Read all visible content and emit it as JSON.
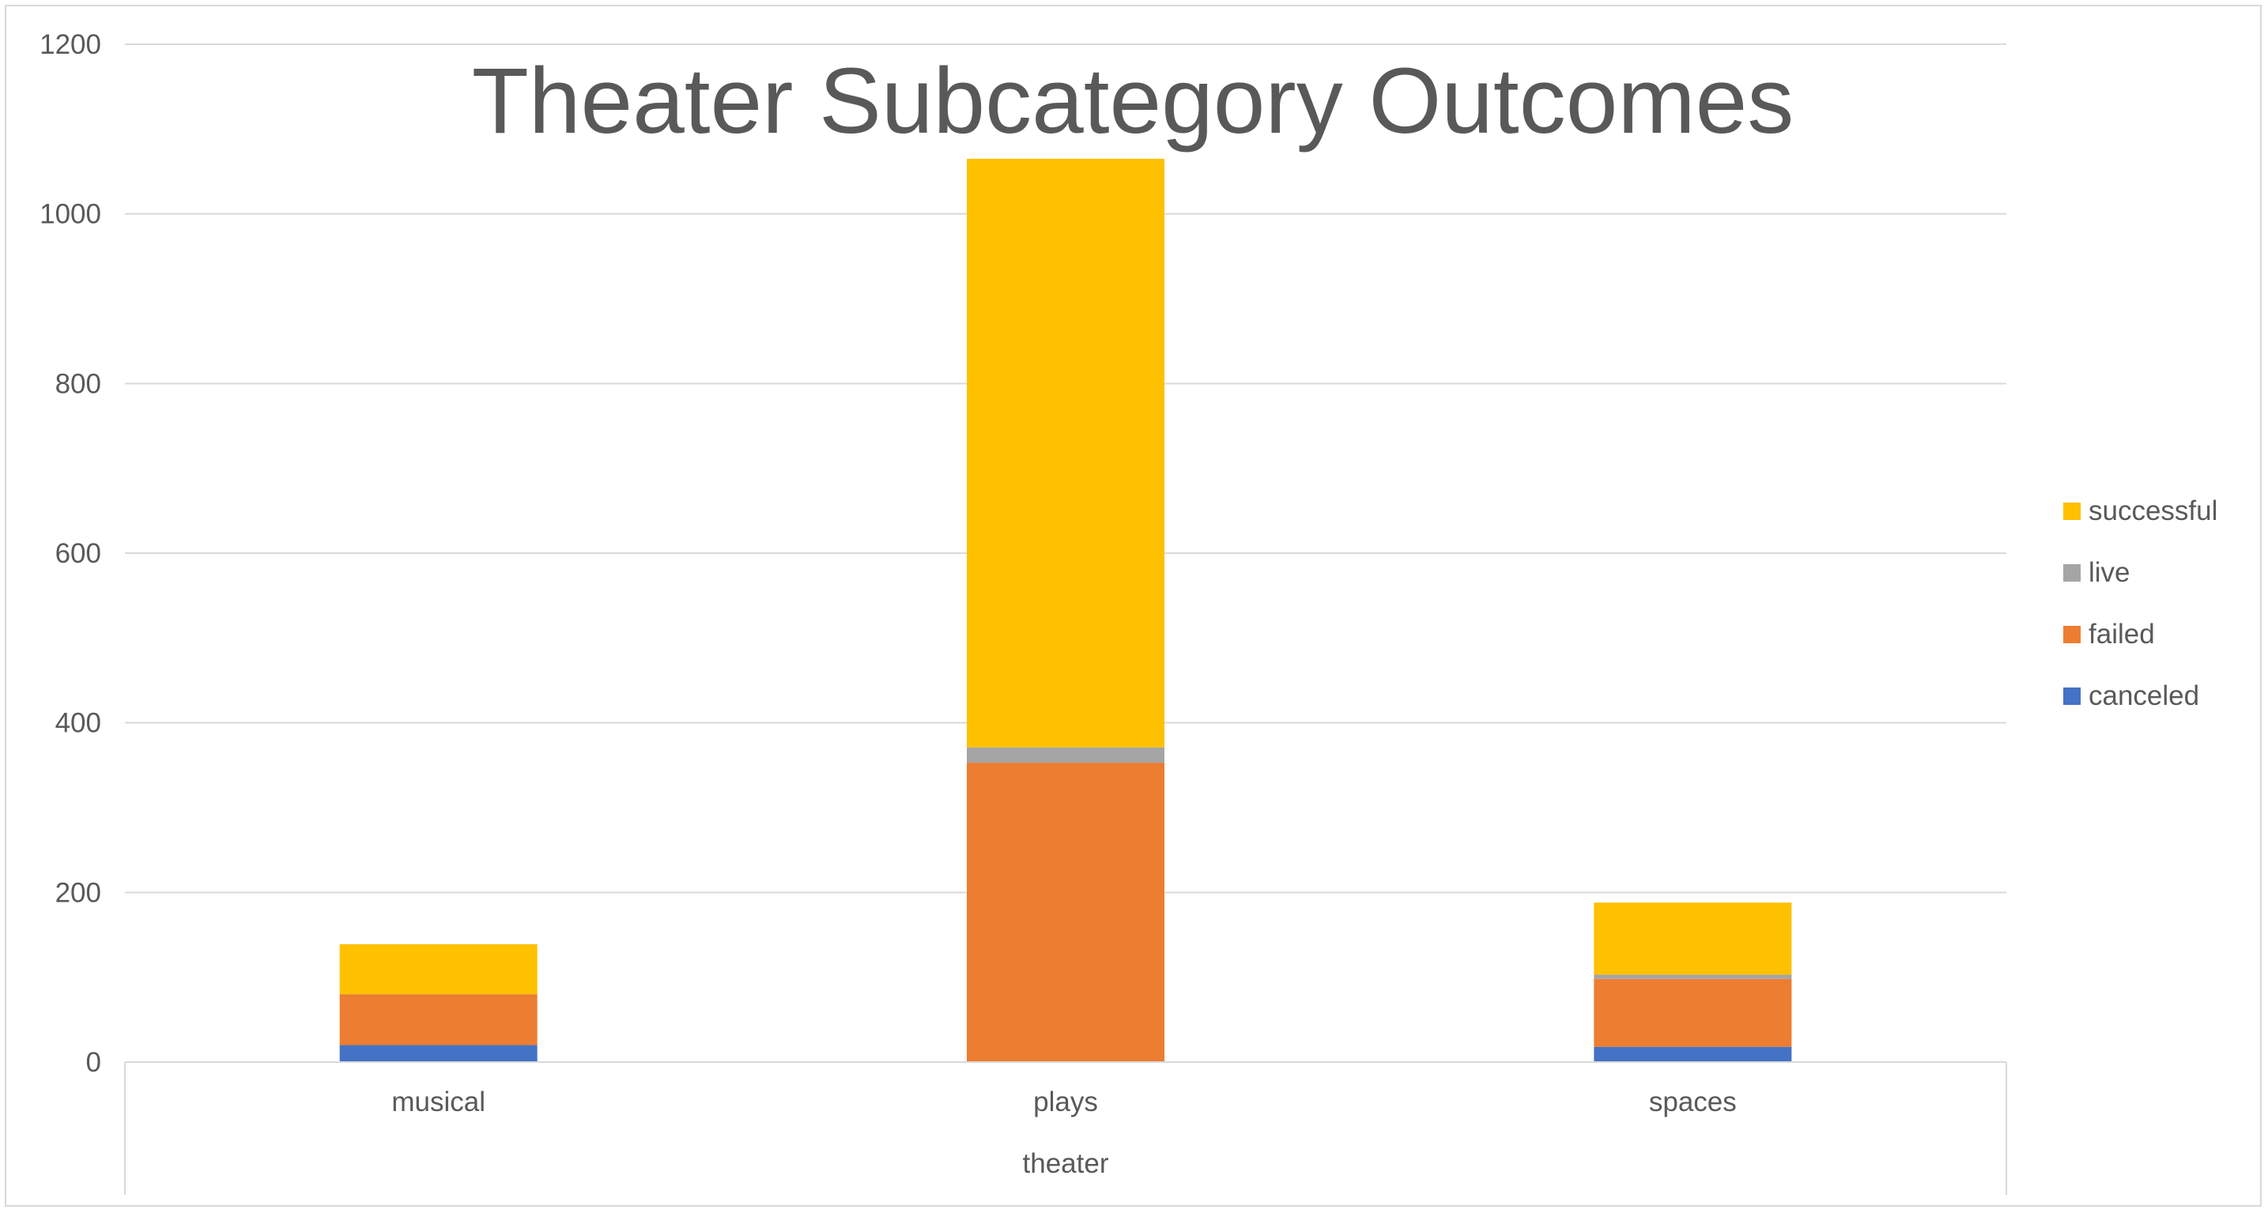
{
  "chart_data": {
    "type": "bar",
    "stacked": true,
    "title": "Theater Subcategory Outcomes",
    "xlabel": "",
    "ylabel": "",
    "group_label": "theater",
    "categories": [
      "musical",
      "plays",
      "spaces"
    ],
    "series": [
      {
        "name": "canceled",
        "color": "#4472C4",
        "values": [
          20,
          0,
          18
        ]
      },
      {
        "name": "failed",
        "color": "#ED7D31",
        "values": [
          60,
          353,
          80
        ]
      },
      {
        "name": "live",
        "color": "#A5A5A5",
        "values": [
          0,
          18,
          5
        ]
      },
      {
        "name": "successful",
        "color": "#FFC000",
        "values": [
          59,
          694,
          85
        ]
      }
    ],
    "ylim": [
      0,
      1200
    ],
    "yticks": [
      0,
      200,
      400,
      600,
      800,
      1000,
      1200
    ],
    "grid": true,
    "legend_position": "right"
  }
}
